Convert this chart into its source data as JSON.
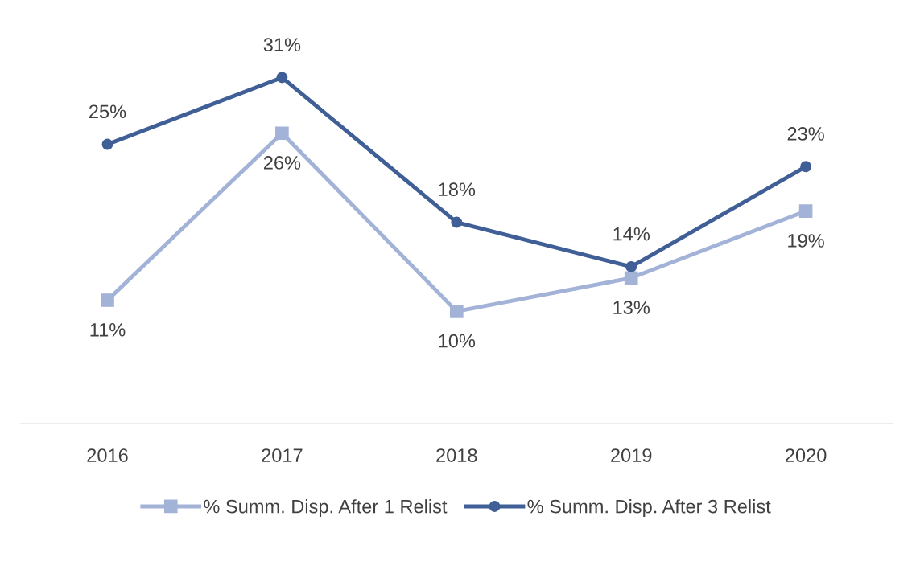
{
  "chart_data": {
    "type": "line",
    "categories": [
      "2016",
      "2017",
      "2018",
      "2019",
      "2020"
    ],
    "series": [
      {
        "name": "% Summ. Disp. After 1 Relist",
        "color": "#a3b3d8",
        "values": [
          11,
          26,
          10,
          13,
          19
        ],
        "value_labels": [
          "11%",
          "26%",
          "10%",
          "13%",
          "19%"
        ],
        "marker": "square"
      },
      {
        "name": "% Summ. Disp. After 3 Relist",
        "color": "#3f5f96",
        "values": [
          25,
          31,
          18,
          14,
          23
        ],
        "value_labels": [
          "25%",
          "31%",
          "18%",
          "14%",
          "23%"
        ],
        "marker": "circle"
      }
    ],
    "grid": false,
    "legend": "bottom",
    "tick_labels": "x"
  }
}
